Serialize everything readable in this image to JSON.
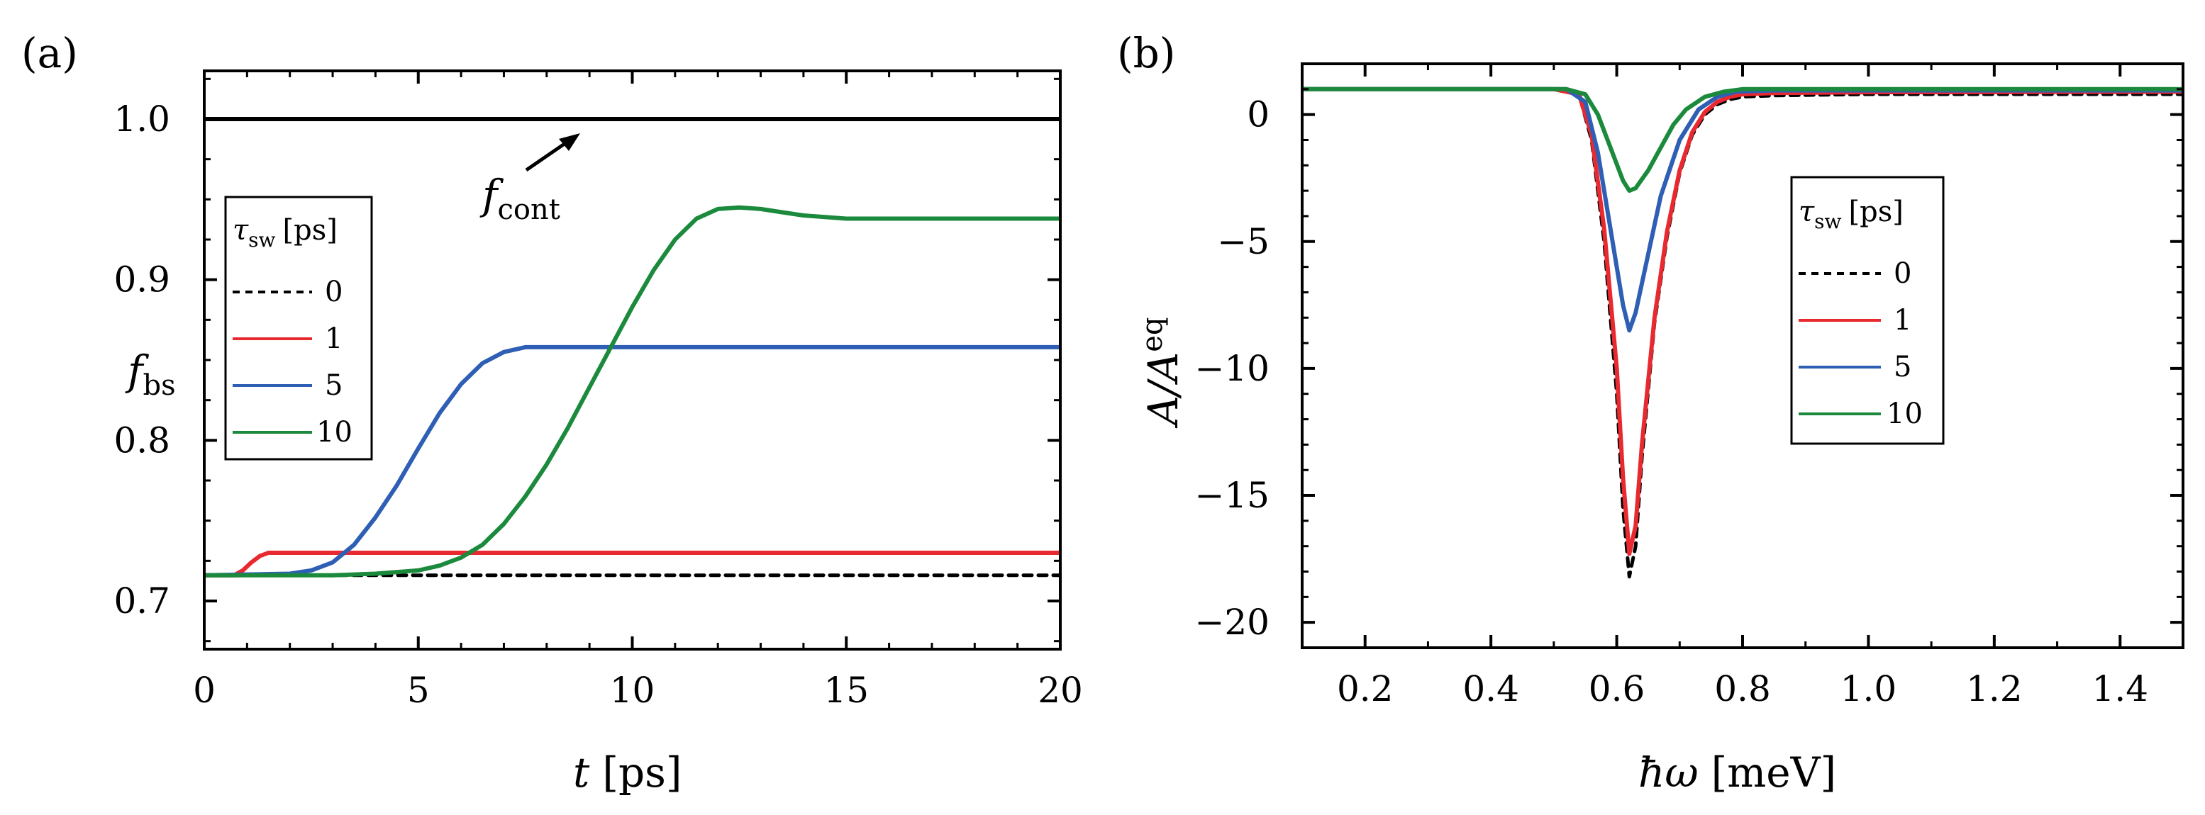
{
  "colors": {
    "tau0": "#000000",
    "tau1": "#e8292f",
    "tau5": "#2e5fb4",
    "tau10": "#1b8a3d",
    "fcont": "#000000"
  },
  "chart_data": [
    {
      "panel_label": "(a)",
      "type": "line",
      "xlabel": "t [ps]",
      "xlabel_var": "t",
      "xlabel_unit": "[ps]",
      "ylabel": "f_bs",
      "ylabel_main": "f",
      "ylabel_sub": "bs",
      "xlim": [
        0,
        20
      ],
      "ylim": [
        0.67,
        1.03
      ],
      "xticks": [
        0,
        5,
        10,
        15,
        20
      ],
      "xtick_labels": [
        "0",
        "5",
        "10",
        "15",
        "20"
      ],
      "yticks": [
        0.7,
        0.8,
        0.9,
        1.0
      ],
      "ytick_labels": [
        "0.7",
        "0.8",
        "0.9",
        "1.0"
      ],
      "legend": {
        "title": "τ_sw [ps]",
        "title_main": "τ",
        "title_sub": "sw",
        "title_unit": "[ps]",
        "entries": [
          "0",
          "1",
          "5",
          "10"
        ],
        "position": "middle-left"
      },
      "annotation": {
        "text": "f_cont",
        "main": "f",
        "sub": "cont",
        "points_to": "reference line y = 1.0"
      },
      "series": [
        {
          "name": "f_cont",
          "style": "solid",
          "color_key": "fcont",
          "x": [
            0,
            20
          ],
          "y": [
            1.0,
            1.0
          ]
        },
        {
          "name": "0",
          "style": "dashed",
          "color_key": "tau0",
          "x": [
            0,
            20
          ],
          "y": [
            0.716,
            0.716
          ]
        },
        {
          "name": "1",
          "style": "solid",
          "color_key": "tau1",
          "x": [
            0,
            0.7,
            0.9,
            1.1,
            1.3,
            1.5,
            20
          ],
          "y": [
            0.716,
            0.716,
            0.719,
            0.724,
            0.728,
            0.73,
            0.73
          ]
        },
        {
          "name": "5",
          "style": "solid",
          "color_key": "tau5",
          "x": [
            0,
            2.0,
            2.5,
            3.0,
            3.5,
            4.0,
            4.5,
            5.0,
            5.5,
            6.0,
            6.5,
            7.0,
            7.5,
            8.0,
            9.0,
            20
          ],
          "y": [
            0.716,
            0.717,
            0.719,
            0.724,
            0.735,
            0.752,
            0.772,
            0.795,
            0.817,
            0.835,
            0.848,
            0.855,
            0.858,
            0.858,
            0.858,
            0.858
          ]
        },
        {
          "name": "10",
          "style": "solid",
          "color_key": "tau10",
          "x": [
            0,
            3.0,
            4.0,
            5.0,
            5.5,
            6.0,
            6.5,
            7.0,
            7.5,
            8.0,
            8.5,
            9.0,
            9.5,
            10.0,
            10.5,
            11.0,
            11.5,
            12.0,
            12.5,
            13.0,
            13.5,
            14.0,
            14.5,
            15.0,
            16.0,
            17.0,
            18.0,
            20.0
          ],
          "y": [
            0.716,
            0.716,
            0.717,
            0.719,
            0.722,
            0.727,
            0.735,
            0.748,
            0.765,
            0.785,
            0.808,
            0.833,
            0.858,
            0.883,
            0.906,
            0.925,
            0.938,
            0.944,
            0.945,
            0.944,
            0.942,
            0.94,
            0.939,
            0.938,
            0.938,
            0.938,
            0.938,
            0.938
          ]
        }
      ]
    },
    {
      "panel_label": "(b)",
      "type": "line",
      "xlabel": "ħω [meV]",
      "xlabel_var": "ħω",
      "xlabel_unit": "[meV]",
      "ylabel": "A/A^eq",
      "ylabel_main": "A/A",
      "ylabel_sup": "eq",
      "xlim": [
        0.1,
        1.5
      ],
      "ylim": [
        -21,
        2
      ],
      "xticks": [
        0.2,
        0.4,
        0.6,
        0.8,
        1.0,
        1.2,
        1.4
      ],
      "xtick_labels": [
        "0.2",
        "0.4",
        "0.6",
        "0.8",
        "1.0",
        "1.2",
        "1.4"
      ],
      "yticks": [
        0,
        -5,
        -10,
        -15,
        -20
      ],
      "ytick_labels": [
        "0",
        "−5",
        "−10",
        "−15",
        "−20"
      ],
      "legend": {
        "title": "τ_sw [ps]",
        "title_main": "τ",
        "title_sub": "sw",
        "title_unit": "[ps]",
        "entries": [
          "0",
          "1",
          "5",
          "10"
        ],
        "position": "center-right"
      },
      "series": [
        {
          "name": "0",
          "style": "dashed",
          "color_key": "tau0",
          "x": [
            0.1,
            0.5,
            0.54,
            0.56,
            0.58,
            0.6,
            0.61,
            0.62,
            0.63,
            0.64,
            0.66,
            0.68,
            0.7,
            0.72,
            0.74,
            0.76,
            0.78,
            0.8,
            0.85,
            1.0,
            1.5
          ],
          "y": [
            1.0,
            1.0,
            0.8,
            -1.0,
            -5.0,
            -11.0,
            -15.5,
            -18.2,
            -17.0,
            -13.5,
            -8.2,
            -4.8,
            -2.3,
            -0.8,
            0.0,
            0.4,
            0.6,
            0.7,
            0.75,
            0.8,
            0.8
          ]
        },
        {
          "name": "1",
          "style": "solid",
          "color_key": "tau1",
          "x": [
            0.1,
            0.5,
            0.54,
            0.56,
            0.58,
            0.6,
            0.61,
            0.62,
            0.63,
            0.64,
            0.66,
            0.68,
            0.7,
            0.72,
            0.74,
            0.76,
            0.78,
            0.8,
            0.85,
            1.0,
            1.5
          ],
          "y": [
            1.0,
            1.0,
            0.8,
            -0.8,
            -4.5,
            -10.0,
            -14.3,
            -17.3,
            -16.2,
            -13.0,
            -8.0,
            -4.6,
            -2.2,
            -0.7,
            0.1,
            0.5,
            0.7,
            0.8,
            0.85,
            0.88,
            0.9
          ]
        },
        {
          "name": "5",
          "style": "solid",
          "color_key": "tau5",
          "x": [
            0.1,
            0.52,
            0.55,
            0.57,
            0.59,
            0.61,
            0.62,
            0.63,
            0.65,
            0.67,
            0.7,
            0.73,
            0.76,
            0.79,
            0.85,
            1.0,
            1.5
          ],
          "y": [
            1.0,
            1.0,
            0.5,
            -1.5,
            -4.5,
            -7.5,
            -8.5,
            -7.8,
            -5.5,
            -3.2,
            -1.0,
            0.2,
            0.7,
            0.9,
            0.95,
            0.95,
            0.95
          ]
        },
        {
          "name": "10",
          "style": "solid",
          "color_key": "tau10",
          "x": [
            0.1,
            0.52,
            0.55,
            0.57,
            0.59,
            0.61,
            0.62,
            0.63,
            0.65,
            0.67,
            0.69,
            0.71,
            0.74,
            0.77,
            0.8,
            0.85,
            1.0,
            1.5
          ],
          "y": [
            1.0,
            1.0,
            0.8,
            0.0,
            -1.3,
            -2.6,
            -3.0,
            -2.9,
            -2.2,
            -1.3,
            -0.4,
            0.2,
            0.7,
            0.9,
            1.0,
            1.0,
            1.0,
            1.0
          ]
        }
      ]
    }
  ]
}
